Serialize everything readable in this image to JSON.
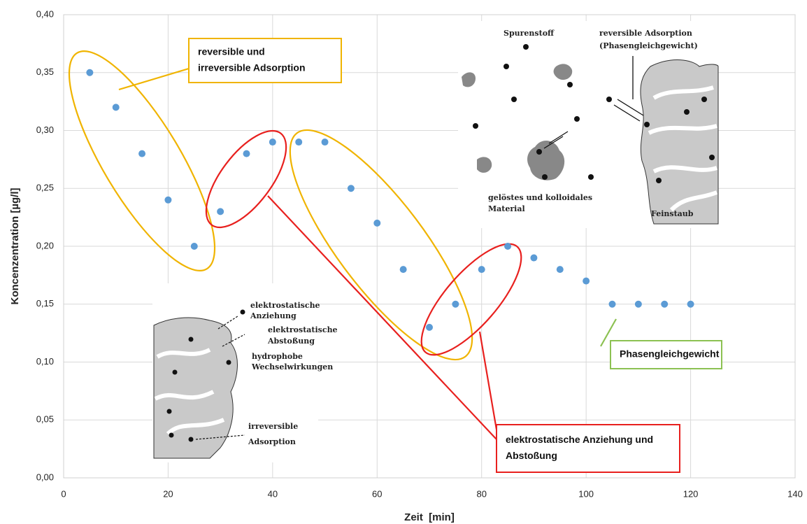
{
  "chart_data": {
    "type": "scatter",
    "x_label": "Zeit  [min]",
    "y_label": "Koncenzentration [µg/l]",
    "x": [
      5,
      10,
      15,
      20,
      25,
      30,
      35,
      40,
      45,
      50,
      55,
      60,
      65,
      70,
      75,
      80,
      85,
      90,
      95,
      100,
      105,
      110,
      115,
      120
    ],
    "values": [
      0.35,
      0.32,
      0.28,
      0.24,
      0.2,
      0.23,
      0.28,
      0.29,
      0.29,
      0.29,
      0.25,
      0.22,
      0.18,
      0.13,
      0.15,
      0.18,
      0.2,
      0.19,
      0.18,
      0.17,
      0.15,
      0.15,
      0.15,
      0.15
    ],
    "color": "#5b9bd5",
    "xlim": [
      0,
      140
    ],
    "xticks": [
      0,
      20,
      40,
      60,
      80,
      100,
      120,
      140
    ],
    "ylim": [
      0,
      0.4
    ],
    "yticks": [
      {
        "value": 0,
        "label": "0,00"
      },
      {
        "value": 0.05,
        "label": "0,05"
      },
      {
        "value": 0.1,
        "label": "0,10"
      },
      {
        "value": 0.15,
        "label": "0,15"
      },
      {
        "value": 0.2,
        "label": "0,20"
      },
      {
        "value": 0.25,
        "label": "0,25"
      },
      {
        "value": 0.3,
        "label": "0,30"
      },
      {
        "value": 0.35,
        "label": "0,35"
      },
      {
        "value": 0.4,
        "label": "0,40"
      }
    ],
    "grid": true,
    "annotations": [
      {
        "lines": [
          "reversible und",
          "irreversible Adsorption"
        ],
        "color": "#f0b400"
      },
      {
        "lines": [
          "elektrostatische Anziehung und",
          "Abstoßung"
        ],
        "color": "#e8201e"
      },
      {
        "lines": [
          "Phasengleichgewicht"
        ],
        "color": "#8cc152"
      }
    ],
    "insets": [
      {
        "labels": [
          "Spurenstoff",
          "reversible Adsorption",
          "(Phasengleichgewicht)",
          "gelöstes und kolloidales",
          "Material",
          "Feinstaub"
        ]
      },
      {
        "labels": [
          "elektrostatische",
          "Anziehung",
          "elektrostatische",
          "Abstoßung",
          "hydrophobe",
          "Wechselwirkungen",
          "irreversible",
          "Adsorption"
        ]
      }
    ]
  }
}
